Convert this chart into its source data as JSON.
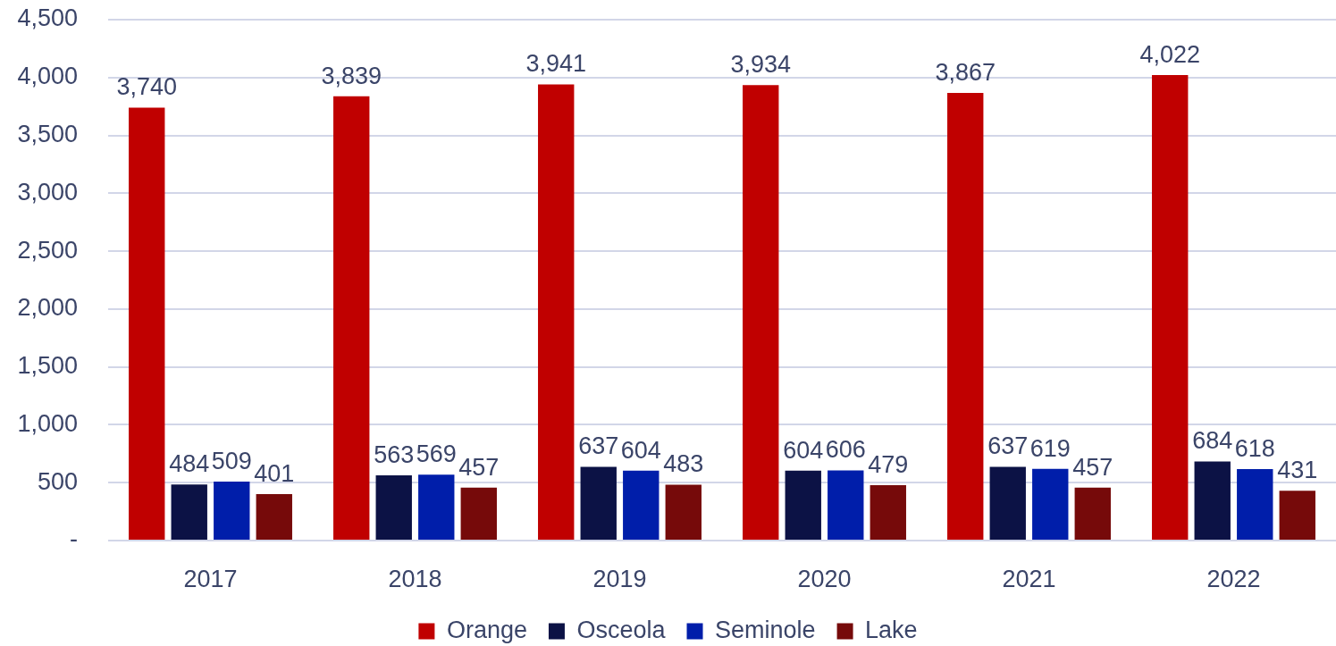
{
  "chart_data": {
    "type": "bar",
    "categories": [
      "2017",
      "2018",
      "2019",
      "2020",
      "2021",
      "2022"
    ],
    "series": [
      {
        "name": "Orange",
        "color": "#c00000",
        "values": [
          3740,
          3839,
          3941,
          3934,
          3867,
          4022
        ],
        "value_labels": [
          "3,740",
          "3,839",
          "3,941",
          "3,934",
          "3,867",
          "4,022"
        ]
      },
      {
        "name": "Osceola",
        "color": "#0c1245",
        "values": [
          484,
          563,
          637,
          604,
          637,
          684
        ],
        "value_labels": [
          "484",
          "563",
          "637",
          "604",
          "637",
          "684"
        ]
      },
      {
        "name": "Seminole",
        "color": "#001eaa",
        "values": [
          509,
          569,
          604,
          606,
          619,
          618
        ],
        "value_labels": [
          "509",
          "569",
          "604",
          "606",
          "619",
          "618"
        ]
      },
      {
        "name": "Lake",
        "color": "#760a0a",
        "values": [
          401,
          457,
          483,
          479,
          457,
          431
        ],
        "value_labels": [
          "401",
          "457",
          "483",
          "479",
          "457",
          "431"
        ]
      }
    ],
    "ylim": [
      0,
      4500
    ],
    "yticks": [
      {
        "value": 0,
        "label": "-"
      },
      500,
      {
        "value": 1000,
        "label": "1,000"
      },
      {
        "value": 1500,
        "label": "1,500"
      },
      {
        "value": 2000,
        "label": "2,000"
      },
      {
        "value": 2500,
        "label": "2,500"
      },
      {
        "value": 3000,
        "label": "3,000"
      },
      {
        "value": 3500,
        "label": "3,500"
      },
      {
        "value": 4000,
        "label": "4,000"
      },
      {
        "value": 4500,
        "label": "4,500"
      }
    ],
    "grid": "y",
    "legend": "bottom"
  }
}
